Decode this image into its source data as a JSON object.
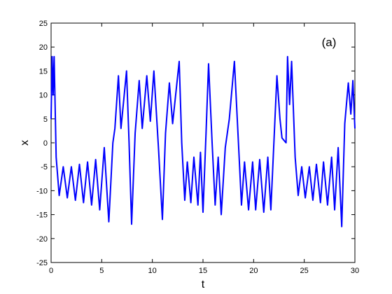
{
  "chart_data": {
    "type": "line",
    "annotation": "(a)",
    "xlabel": "t",
    "ylabel": "x",
    "xlim": [
      0,
      30
    ],
    "ylim": [
      -25,
      25
    ],
    "xticks": [
      0,
      5,
      10,
      15,
      20,
      25,
      30
    ],
    "yticks": [
      -25,
      -20,
      -15,
      -10,
      -5,
      0,
      5,
      10,
      15,
      20,
      25
    ],
    "grid": false,
    "x": [
      0,
      0.1,
      0.2,
      0.3,
      0.5,
      0.8,
      1.2,
      1.6,
      2.0,
      2.4,
      2.8,
      3.2,
      3.6,
      4.0,
      4.4,
      4.8,
      5.25,
      5.7,
      6.1,
      6.3,
      6.65,
      6.9,
      7.45,
      7.7,
      7.95,
      8.3,
      8.7,
      9.0,
      9.45,
      9.8,
      10.15,
      10.6,
      10.99,
      11.3,
      11.68,
      12.0,
      12.65,
      12.9,
      13.2,
      13.45,
      13.8,
      14.1,
      14.5,
      14.75,
      15.0,
      15.3,
      15.55,
      15.9,
      16.2,
      16.5,
      16.8,
      17.2,
      17.6,
      18.1,
      18.5,
      18.8,
      19.1,
      19.5,
      19.9,
      20.2,
      20.6,
      21.0,
      21.4,
      21.7,
      22.0,
      22.3,
      22.6,
      22.8,
      23.2,
      23.35,
      23.55,
      23.75,
      24.1,
      24.4,
      24.75,
      25.1,
      25.5,
      25.85,
      26.2,
      26.6,
      26.9,
      27.3,
      27.7,
      28.0,
      28.35,
      28.7,
      29.0,
      29.35,
      29.6,
      29.8,
      30
    ],
    "series": [
      {
        "color": "#0000ff",
        "values": [
          5,
          18,
          10,
          18,
          -3,
          -11,
          -5,
          -11.5,
          -5,
          -12,
          -4.5,
          -12.5,
          -4,
          -13,
          -3.5,
          -14,
          -1,
          -16.5,
          0,
          3,
          14,
          3,
          15,
          0,
          -17,
          2,
          13,
          3,
          14,
          4.5,
          15,
          -1,
          -16,
          2,
          12.5,
          4,
          17,
          0,
          -12,
          -4,
          -12.5,
          -3,
          -13,
          -2,
          -14.5,
          2,
          16.5,
          0,
          -13,
          -3,
          -15,
          -1,
          5,
          17,
          0,
          -13,
          -4,
          -14,
          -4,
          -14,
          -3.5,
          -14.5,
          -3,
          -14,
          0,
          14,
          5,
          1,
          0,
          18,
          8,
          17,
          -3,
          -11,
          -5,
          -11.5,
          -5,
          -12,
          -4.5,
          -12.5,
          -4,
          -13,
          -3,
          -14,
          -1,
          -17.5,
          4,
          12.5,
          6,
          13,
          3
        ]
      }
    ]
  }
}
